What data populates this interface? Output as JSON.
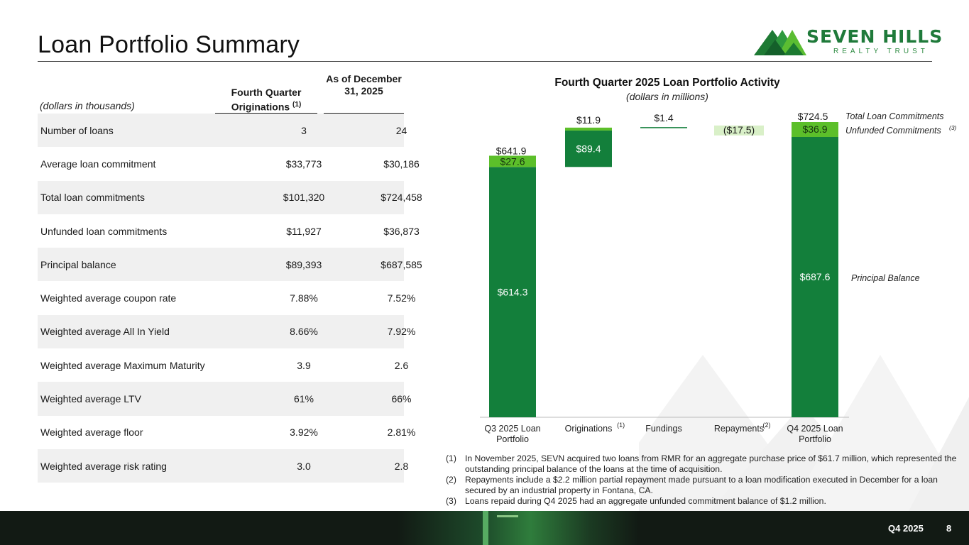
{
  "page": {
    "title": "Loan Portfolio Summary",
    "logo_name": "SEVEN HILLS",
    "logo_sub": "REALTY TRUST",
    "footer_quarter": "Q4 2025",
    "footer_page": "8"
  },
  "table": {
    "units_label": "(dollars in thousands)",
    "col1_header": "Fourth Quarter Originations",
    "col1_sup": "(1)",
    "col2_header": "As of December 31, 2025",
    "rows": [
      {
        "label": "Number of loans",
        "q4": "3",
        "dec31": "24"
      },
      {
        "label": "Average loan commitment",
        "q4": "$33,773",
        "dec31": "$30,186"
      },
      {
        "label": "Total loan commitments",
        "q4": "$101,320",
        "dec31": "$724,458"
      },
      {
        "label": "Unfunded loan commitments",
        "q4": "$11,927",
        "dec31": "$36,873"
      },
      {
        "label": "Principal balance",
        "q4": "$89,393",
        "dec31": "$687,585"
      },
      {
        "label": "Weighted average coupon rate",
        "q4": "7.88%",
        "dec31": "7.52%"
      },
      {
        "label": "Weighted average All In Yield",
        "q4": "8.66%",
        "dec31": "7.92%"
      },
      {
        "label": "Weighted average Maximum Maturity",
        "q4": "3.9",
        "dec31": "2.6"
      },
      {
        "label": "Weighted average LTV",
        "q4": "61%",
        "dec31": "66%"
      },
      {
        "label": "Weighted average floor",
        "q4": "3.92%",
        "dec31": "2.81%"
      },
      {
        "label": "Weighted average risk rating",
        "q4": "3.0",
        "dec31": "2.8"
      }
    ]
  },
  "chart_data": {
    "type": "bar",
    "subtype": "waterfall",
    "title": "Fourth Quarter 2025 Loan Portfolio Activity",
    "subtitle": "(dollars in millions)",
    "categories": [
      "Q3 2025 Loan Portfolio",
      "Originations",
      "Fundings",
      "Repayments",
      "Q4 2025 Loan Portfolio"
    ],
    "category_sups": [
      "",
      "(1)",
      "",
      "(2)",
      ""
    ],
    "series": [
      {
        "name": "Principal Balance",
        "values": [
          614.3,
          89.4,
          1.4,
          -17.5,
          687.6
        ],
        "labels": [
          "$614.3",
          "$89.4",
          "$1.4",
          "($17.5)",
          "$687.6"
        ]
      },
      {
        "name": "Unfunded Commitments",
        "values": [
          27.6,
          11.9,
          null,
          null,
          36.9
        ],
        "labels": [
          "$27.6",
          "$11.9",
          "",
          "",
          "$36.9"
        ]
      }
    ],
    "totals": [
      641.9,
      null,
      null,
      null,
      724.5
    ],
    "total_labels": [
      "$641.9",
      "",
      "",
      "",
      "$724.5"
    ],
    "legend": {
      "total": "Total Loan Commitments",
      "unfunded": "Unfunded Commitments",
      "unfunded_sup": "(3)",
      "principal": "Principal Balance"
    },
    "ylim": [
      0,
      724.5
    ],
    "colors": {
      "principal": "#137f3b",
      "unfunded": "#5cbf2a",
      "repay": "#d9f0c8",
      "fund_line": "#137f3b"
    }
  },
  "notes": [
    {
      "num": "(1)",
      "text": "In November 2025, SEVN acquired two loans from RMR for an aggregate purchase price of $61.7 million, which represented the outstanding principal balance of the loans at the time of acquisition."
    },
    {
      "num": "(2)",
      "text": "Repayments include a $2.2 million partial repayment made pursuant to a loan modification executed in December for a loan secured by an industrial property in Fontana, CA."
    },
    {
      "num": "(3)",
      "text": "Loans repaid during Q4 2025 had an aggregate unfunded commitment balance of $1.2 million."
    }
  ]
}
